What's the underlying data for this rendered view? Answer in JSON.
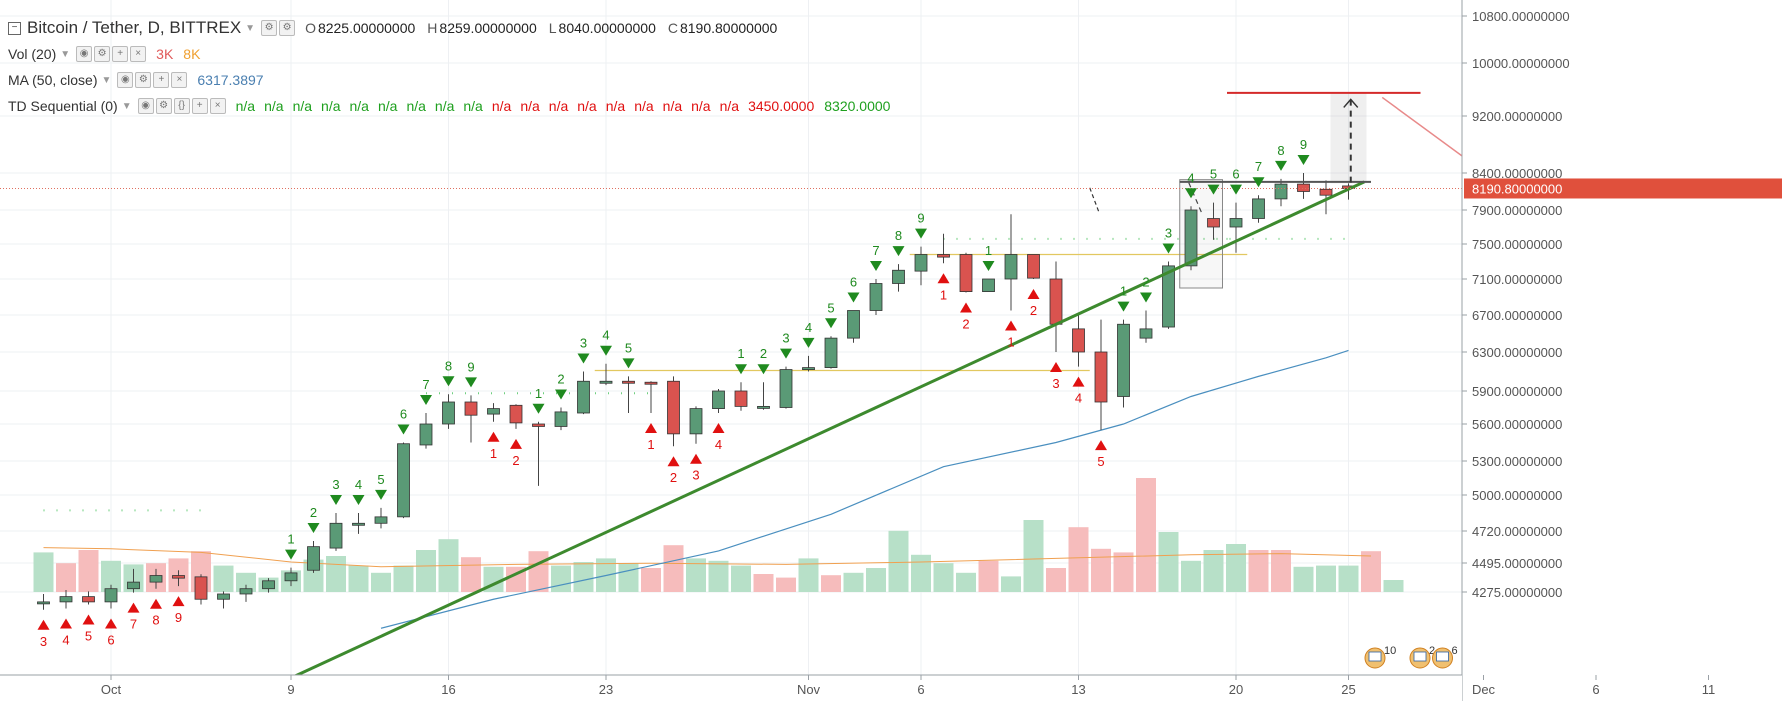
{
  "header": {
    "symbol": "Bitcoin / Tether, D, BITTREX",
    "open_label": "O",
    "open": "8225.00000000",
    "high_label": "H",
    "high": "8259.00000000",
    "low_label": "L",
    "low": "8040.00000000",
    "close_label": "C",
    "close": "8190.80000000"
  },
  "indicators": {
    "vol": {
      "name": "Vol (20)",
      "v1": "3K",
      "v2": "8K",
      "c1": "#e05a5a",
      "c2": "#f0a030"
    },
    "ma": {
      "name": "MA (50, close)",
      "value": "6317.3897",
      "color": "#4a7fb0"
    },
    "td": {
      "name": "TD Sequential (0)",
      "values": [
        "n/a",
        "n/a",
        "n/a",
        "n/a",
        "n/a",
        "n/a",
        "n/a",
        "n/a",
        "n/a",
        "n/a",
        "n/a",
        "n/a",
        "n/a",
        "n/a",
        "n/a",
        "n/a",
        "n/a",
        "n/a"
      ],
      "colors": [
        "green",
        "green",
        "green",
        "green",
        "green",
        "green",
        "green",
        "green",
        "green",
        "red",
        "red",
        "red",
        "red",
        "red",
        "red",
        "red",
        "red",
        "red"
      ],
      "v_red": "3450.0000",
      "v_green": "8320.0000"
    }
  },
  "price_tag": {
    "label": "8190.80000000",
    "value": 8190.8,
    "color": "#e0503c"
  },
  "chart_data": {
    "type": "candlestick",
    "y_axis_ticks": [
      "10800.00000000",
      "10000.00000000",
      "9200.00000000",
      "8400.00000000",
      "7900.00000000",
      "7500.00000000",
      "7100.00000000",
      "6700.00000000",
      "6300.00000000",
      "5900.00000000",
      "5600.00000000",
      "5300.00000000",
      "5000.00000000",
      "4720.00000000",
      "4495.00000000",
      "4275.00000000"
    ],
    "y_axis_values": [
      10800,
      10000,
      9200,
      8400,
      7900,
      7500,
      7100,
      6700,
      6300,
      5900,
      5600,
      5300,
      5000,
      4720,
      4495,
      4275
    ],
    "x_axis_ticks": [
      {
        "label": "Oct",
        "day": 0
      },
      {
        "label": "9",
        "day": 8
      },
      {
        "label": "16",
        "day": 15
      },
      {
        "label": "23",
        "day": 22
      },
      {
        "label": "Nov",
        "day": 31
      },
      {
        "label": "6",
        "day": 36
      },
      {
        "label": "13",
        "day": 43
      },
      {
        "label": "20",
        "day": 50
      },
      {
        "label": "25",
        "day": 55
      },
      {
        "label": "Dec",
        "day": 61
      },
      {
        "label": "6",
        "day": 66
      },
      {
        "label": "11",
        "day": 71
      }
    ],
    "colors": {
      "up": "#5a9a76",
      "down": "#d9534f",
      "vol_up": "#b7e0c8",
      "vol_down": "#f6bcbc",
      "ma": "#4a8fbf",
      "vol_ma": "#f0a050",
      "trend": "#3d8a2e",
      "td_green": "#1f8a1f",
      "td_red": "#e01010"
    },
    "candles": [
      {
        "day": -3,
        "o": 4190,
        "h": 4260,
        "l": 4140,
        "c": 4200
      },
      {
        "day": -2,
        "o": 4200,
        "h": 4290,
        "l": 4150,
        "c": 4240
      },
      {
        "day": -1,
        "o": 4240,
        "h": 4280,
        "l": 4180,
        "c": 4200
      },
      {
        "day": 0,
        "o": 4200,
        "h": 4330,
        "l": 4150,
        "c": 4300
      },
      {
        "day": 1,
        "o": 4300,
        "h": 4450,
        "l": 4270,
        "c": 4350
      },
      {
        "day": 2,
        "o": 4350,
        "h": 4450,
        "l": 4300,
        "c": 4400
      },
      {
        "day": 3,
        "o": 4400,
        "h": 4440,
        "l": 4320,
        "c": 4380
      },
      {
        "day": 4,
        "o": 4390,
        "h": 4410,
        "l": 4180,
        "c": 4220
      },
      {
        "day": 5,
        "o": 4220,
        "h": 4280,
        "l": 4150,
        "c": 4260
      },
      {
        "day": 6,
        "o": 4260,
        "h": 4330,
        "l": 4200,
        "c": 4300
      },
      {
        "day": 7,
        "o": 4300,
        "h": 4380,
        "l": 4270,
        "c": 4360
      },
      {
        "day": 8,
        "o": 4360,
        "h": 4460,
        "l": 4320,
        "c": 4420
      },
      {
        "day": 9,
        "o": 4440,
        "h": 4650,
        "l": 4420,
        "c": 4610
      },
      {
        "day": 10,
        "o": 4600,
        "h": 4860,
        "l": 4580,
        "c": 4780
      },
      {
        "day": 11,
        "o": 4770,
        "h": 4860,
        "l": 4700,
        "c": 4780
      },
      {
        "day": 12,
        "o": 4780,
        "h": 4900,
        "l": 4740,
        "c": 4830
      },
      {
        "day": 13,
        "o": 4830,
        "h": 5450,
        "l": 4820,
        "c": 5440
      },
      {
        "day": 14,
        "o": 5430,
        "h": 5700,
        "l": 5400,
        "c": 5600
      },
      {
        "day": 15,
        "o": 5600,
        "h": 5870,
        "l": 5560,
        "c": 5800
      },
      {
        "day": 16,
        "o": 5800,
        "h": 5860,
        "l": 5450,
        "c": 5680
      },
      {
        "day": 17,
        "o": 5690,
        "h": 5790,
        "l": 5620,
        "c": 5740
      },
      {
        "day": 18,
        "o": 5770,
        "h": 5780,
        "l": 5560,
        "c": 5610
      },
      {
        "day": 19,
        "o": 5600,
        "h": 5620,
        "l": 5080,
        "c": 5580
      },
      {
        "day": 20,
        "o": 5580,
        "h": 5750,
        "l": 5550,
        "c": 5710
      },
      {
        "day": 21,
        "o": 5700,
        "h": 6100,
        "l": 5690,
        "c": 6000
      },
      {
        "day": 22,
        "o": 6000,
        "h": 6180,
        "l": 5960,
        "c": 6000
      },
      {
        "day": 23,
        "o": 6000,
        "h": 6050,
        "l": 5700,
        "c": 5990
      },
      {
        "day": 24,
        "o": 5990,
        "h": 6000,
        "l": 5700,
        "c": 5980
      },
      {
        "day": 25,
        "o": 6000,
        "h": 6050,
        "l": 5420,
        "c": 5520
      },
      {
        "day": 26,
        "o": 5520,
        "h": 5760,
        "l": 5440,
        "c": 5740
      },
      {
        "day": 27,
        "o": 5740,
        "h": 5920,
        "l": 5700,
        "c": 5900
      },
      {
        "day": 28,
        "o": 5900,
        "h": 5990,
        "l": 5720,
        "c": 5760
      },
      {
        "day": 29,
        "o": 5760,
        "h": 5990,
        "l": 5730,
        "c": 5760
      },
      {
        "day": 30,
        "o": 5750,
        "h": 6150,
        "l": 5740,
        "c": 6120
      },
      {
        "day": 31,
        "o": 6120,
        "h": 6260,
        "l": 6100,
        "c": 6140
      },
      {
        "day": 32,
        "o": 6140,
        "h": 6470,
        "l": 6130,
        "c": 6450
      },
      {
        "day": 33,
        "o": 6450,
        "h": 6750,
        "l": 6400,
        "c": 6750
      },
      {
        "day": 34,
        "o": 6750,
        "h": 7100,
        "l": 6700,
        "c": 7050
      },
      {
        "day": 35,
        "o": 7050,
        "h": 7270,
        "l": 6960,
        "c": 7200
      },
      {
        "day": 36,
        "o": 7190,
        "h": 7470,
        "l": 7030,
        "c": 7380
      },
      {
        "day": 37,
        "o": 7380,
        "h": 7620,
        "l": 7280,
        "c": 7350
      },
      {
        "day": 38,
        "o": 7380,
        "h": 7400,
        "l": 6950,
        "c": 6960
      },
      {
        "day": 39,
        "o": 6960,
        "h": 7100,
        "l": 6960,
        "c": 7100
      },
      {
        "day": 40,
        "o": 7100,
        "h": 7850,
        "l": 6750,
        "c": 7380
      },
      {
        "day": 41,
        "o": 7380,
        "h": 7380,
        "l": 7100,
        "c": 7110
      },
      {
        "day": 42,
        "o": 7100,
        "h": 7300,
        "l": 6300,
        "c": 6600
      },
      {
        "day": 43,
        "o": 6550,
        "h": 6700,
        "l": 6150,
        "c": 6300
      },
      {
        "day": 44,
        "o": 6300,
        "h": 6650,
        "l": 5550,
        "c": 5800
      },
      {
        "day": 45,
        "o": 5850,
        "h": 6650,
        "l": 5750,
        "c": 6600
      },
      {
        "day": 46,
        "o": 6450,
        "h": 6750,
        "l": 6400,
        "c": 6550
      },
      {
        "day": 47,
        "o": 6570,
        "h": 7300,
        "l": 6550,
        "c": 7250
      },
      {
        "day": 48,
        "o": 7250,
        "h": 7950,
        "l": 7200,
        "c": 7900
      },
      {
        "day": 49,
        "o": 7800,
        "h": 8000,
        "l": 7550,
        "c": 7700
      },
      {
        "day": 50,
        "o": 7700,
        "h": 8000,
        "l": 7400,
        "c": 7800
      },
      {
        "day": 51,
        "o": 7800,
        "h": 8100,
        "l": 7750,
        "c": 8050
      },
      {
        "day": 52,
        "o": 8050,
        "h": 8320,
        "l": 7950,
        "c": 8250
      },
      {
        "day": 53,
        "o": 8250,
        "h": 8400,
        "l": 8050,
        "c": 8150
      },
      {
        "day": 54,
        "o": 8180,
        "h": 8300,
        "l": 7850,
        "c": 8100
      },
      {
        "day": 55,
        "o": 8225,
        "h": 8259,
        "l": 8040,
        "c": 8190.8
      }
    ],
    "volume": [
      {
        "day": -3,
        "v": 3.3,
        "up": true
      },
      {
        "day": -2,
        "v": 2.4,
        "up": false
      },
      {
        "day": -1,
        "v": 3.5,
        "up": false
      },
      {
        "day": 0,
        "v": 2.6,
        "up": true
      },
      {
        "day": 1,
        "v": 2.3,
        "up": true
      },
      {
        "day": 2,
        "v": 2.4,
        "up": false
      },
      {
        "day": 3,
        "v": 2.8,
        "up": false
      },
      {
        "day": 4,
        "v": 3.4,
        "up": false
      },
      {
        "day": 5,
        "v": 2.2,
        "up": true
      },
      {
        "day": 6,
        "v": 1.6,
        "up": true
      },
      {
        "day": 7,
        "v": 1.2,
        "up": true
      },
      {
        "day": 8,
        "v": 1.8,
        "up": true
      },
      {
        "day": 9,
        "v": 2.7,
        "up": true
      },
      {
        "day": 10,
        "v": 3.0,
        "up": true
      },
      {
        "day": 11,
        "v": 2.2,
        "up": true
      },
      {
        "day": 12,
        "v": 1.6,
        "up": true
      },
      {
        "day": 13,
        "v": 2.2,
        "up": true
      },
      {
        "day": 14,
        "v": 3.5,
        "up": true
      },
      {
        "day": 15,
        "v": 4.4,
        "up": true
      },
      {
        "day": 16,
        "v": 2.9,
        "up": false
      },
      {
        "day": 17,
        "v": 2.1,
        "up": true
      },
      {
        "day": 18,
        "v": 2.1,
        "up": false
      },
      {
        "day": 19,
        "v": 3.4,
        "up": false
      },
      {
        "day": 20,
        "v": 2.2,
        "up": true
      },
      {
        "day": 21,
        "v": 2.5,
        "up": true
      },
      {
        "day": 22,
        "v": 2.8,
        "up": true
      },
      {
        "day": 23,
        "v": 2.4,
        "up": true
      },
      {
        "day": 24,
        "v": 2.0,
        "up": false
      },
      {
        "day": 25,
        "v": 3.9,
        "up": false
      },
      {
        "day": 26,
        "v": 2.8,
        "up": true
      },
      {
        "day": 27,
        "v": 2.6,
        "up": true
      },
      {
        "day": 28,
        "v": 2.2,
        "up": true
      },
      {
        "day": 29,
        "v": 1.5,
        "up": false
      },
      {
        "day": 30,
        "v": 1.2,
        "up": false
      },
      {
        "day": 31,
        "v": 2.8,
        "up": true
      },
      {
        "day": 32,
        "v": 1.4,
        "up": false
      },
      {
        "day": 33,
        "v": 1.6,
        "up": true
      },
      {
        "day": 34,
        "v": 2.0,
        "up": true
      },
      {
        "day": 35,
        "v": 5.1,
        "up": true
      },
      {
        "day": 36,
        "v": 3.1,
        "up": true
      },
      {
        "day": 37,
        "v": 2.4,
        "up": true
      },
      {
        "day": 38,
        "v": 1.6,
        "up": true
      },
      {
        "day": 39,
        "v": 2.6,
        "up": false
      },
      {
        "day": 40,
        "v": 1.3,
        "up": true
      },
      {
        "day": 41,
        "v": 6.0,
        "up": true
      },
      {
        "day": 42,
        "v": 2.0,
        "up": false
      },
      {
        "day": 43,
        "v": 5.4,
        "up": false
      },
      {
        "day": 44,
        "v": 3.6,
        "up": false
      },
      {
        "day": 45,
        "v": 3.3,
        "up": false
      },
      {
        "day": 46,
        "v": 9.5,
        "up": false
      },
      {
        "day": 47,
        "v": 5.0,
        "up": true
      },
      {
        "day": 48,
        "v": 2.6,
        "up": true
      },
      {
        "day": 49,
        "v": 3.5,
        "up": true
      },
      {
        "day": 50,
        "v": 4.0,
        "up": true
      },
      {
        "day": 51,
        "v": 3.5,
        "up": false
      },
      {
        "day": 52,
        "v": 3.5,
        "up": false
      },
      {
        "day": 53,
        "v": 2.1,
        "up": true
      },
      {
        "day": 54,
        "v": 2.2,
        "up": true
      },
      {
        "day": 55,
        "v": 2.2,
        "up": true
      },
      {
        "day": 56,
        "v": 3.4,
        "up": false
      },
      {
        "day": 57,
        "v": 1.0,
        "up": true
      }
    ],
    "vol_ma": [
      {
        "day": -3,
        "v": 3.7
      },
      {
        "day": 0,
        "v": 3.6
      },
      {
        "day": 4,
        "v": 3.3
      },
      {
        "day": 8,
        "v": 2.5
      },
      {
        "day": 12,
        "v": 2.1
      },
      {
        "day": 18,
        "v": 2.3
      },
      {
        "day": 24,
        "v": 2.4
      },
      {
        "day": 30,
        "v": 2.3
      },
      {
        "day": 36,
        "v": 2.5
      },
      {
        "day": 42,
        "v": 2.8
      },
      {
        "day": 48,
        "v": 3.1
      },
      {
        "day": 52,
        "v": 3.2
      },
      {
        "day": 56,
        "v": 3.0
      }
    ],
    "ma50": [
      {
        "day": 12,
        "v": 4000
      },
      {
        "day": 17,
        "v": 4220
      },
      {
        "day": 22,
        "v": 4400
      },
      {
        "day": 27,
        "v": 4580
      },
      {
        "day": 32,
        "v": 4850
      },
      {
        "day": 37,
        "v": 5250
      },
      {
        "day": 42,
        "v": 5450
      },
      {
        "day": 45,
        "v": 5600
      },
      {
        "day": 48,
        "v": 5850
      },
      {
        "day": 51,
        "v": 6050
      },
      {
        "day": 54,
        "v": 6240
      },
      {
        "day": 55,
        "v": 6317.39
      }
    ],
    "td_setup": [
      {
        "day": -3,
        "n": "3",
        "side": "buy"
      },
      {
        "day": -2,
        "n": "4",
        "side": "buy"
      },
      {
        "day": -1,
        "n": "5",
        "side": "buy"
      },
      {
        "day": 0,
        "n": "6",
        "side": "buy"
      },
      {
        "day": 1,
        "n": "7",
        "side": "buy"
      },
      {
        "day": 2,
        "n": "8",
        "side": "buy"
      },
      {
        "day": 3,
        "n": "9",
        "side": "buy"
      },
      {
        "day": 8,
        "n": "1",
        "side": "sell"
      },
      {
        "day": 9,
        "n": "2",
        "side": "sell"
      },
      {
        "day": 10,
        "n": "3",
        "side": "sell"
      },
      {
        "day": 11,
        "n": "4",
        "side": "sell"
      },
      {
        "day": 12,
        "n": "5",
        "side": "sell"
      },
      {
        "day": 13,
        "n": "6",
        "side": "sell"
      },
      {
        "day": 14,
        "n": "7",
        "side": "sell"
      },
      {
        "day": 15,
        "n": "8",
        "side": "sell"
      },
      {
        "day": 16,
        "n": "9",
        "side": "sell"
      },
      {
        "day": 17,
        "n": "1",
        "side": "buy"
      },
      {
        "day": 18,
        "n": "2",
        "side": "buy"
      },
      {
        "day": 19,
        "n": "1",
        "side": "sell"
      },
      {
        "day": 20,
        "n": "2",
        "side": "sell"
      },
      {
        "day": 21,
        "n": "3",
        "side": "sell"
      },
      {
        "day": 22,
        "n": "4",
        "side": "sell"
      },
      {
        "day": 23,
        "n": "5",
        "side": "sell"
      },
      {
        "day": 24,
        "n": "1",
        "side": "buy"
      },
      {
        "day": 25,
        "n": "2",
        "side": "buy"
      },
      {
        "day": 26,
        "n": "3",
        "side": "buy"
      },
      {
        "day": 27,
        "n": "4",
        "side": "buy"
      },
      {
        "day": 28,
        "n": "1",
        "side": "sell"
      },
      {
        "day": 29,
        "n": "2",
        "side": "sell"
      },
      {
        "day": 30,
        "n": "3",
        "side": "sell"
      },
      {
        "day": 31,
        "n": "4",
        "side": "sell"
      },
      {
        "day": 32,
        "n": "5",
        "side": "sell"
      },
      {
        "day": 33,
        "n": "6",
        "side": "sell"
      },
      {
        "day": 34,
        "n": "7",
        "side": "sell"
      },
      {
        "day": 35,
        "n": "8",
        "side": "sell"
      },
      {
        "day": 36,
        "n": "9",
        "side": "sell"
      },
      {
        "day": 37,
        "n": "1",
        "side": "buy"
      },
      {
        "day": 38,
        "n": "2",
        "side": "buy"
      },
      {
        "day": 39,
        "n": "1",
        "side": "sell"
      },
      {
        "day": 40,
        "n": "1",
        "side": "buy"
      },
      {
        "day": 41,
        "n": "2",
        "side": "buy"
      },
      {
        "day": 42,
        "n": "3",
        "side": "buy"
      },
      {
        "day": 43,
        "n": "4",
        "side": "buy"
      },
      {
        "day": 44,
        "n": "5",
        "side": "buy"
      },
      {
        "day": 45,
        "n": "1",
        "side": "sell"
      },
      {
        "day": 46,
        "n": "2",
        "side": "sell"
      },
      {
        "day": 47,
        "n": "3",
        "side": "sell"
      },
      {
        "day": 48,
        "n": "4",
        "side": "sell"
      },
      {
        "day": 49,
        "n": "5",
        "side": "sell"
      },
      {
        "day": 50,
        "n": "6",
        "side": "sell"
      },
      {
        "day": 51,
        "n": "7",
        "side": "sell"
      },
      {
        "day": 52,
        "n": "8",
        "side": "sell"
      },
      {
        "day": 53,
        "n": "9",
        "side": "sell"
      }
    ],
    "event_markers": [
      {
        "day": 56,
        "label": "10"
      },
      {
        "day": 58,
        "label": "2"
      },
      {
        "day": 59,
        "label": "6"
      }
    ]
  }
}
